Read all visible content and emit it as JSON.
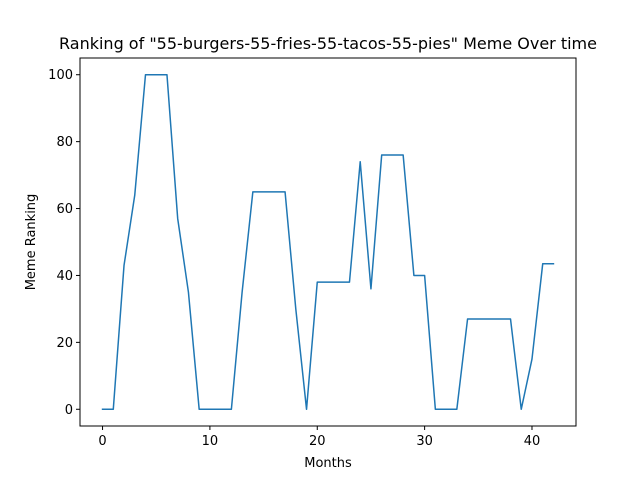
{
  "chart_data": {
    "type": "line",
    "title": "Ranking of \"55-burgers-55-fries-55-tacos-55-pies\" Meme Over time",
    "xlabel": "Months",
    "ylabel": "Meme Ranking",
    "xlim": [
      -2.1,
      44.1
    ],
    "ylim": [
      -5,
      105
    ],
    "xticks": [
      0,
      10,
      20,
      30,
      40
    ],
    "yticks": [
      0,
      20,
      40,
      60,
      80,
      100
    ],
    "grid": false,
    "series": [
      {
        "color": "#1f77b4",
        "x": [
          0,
          1,
          2,
          3,
          4,
          5,
          6,
          7,
          8,
          9,
          10,
          11,
          12,
          13,
          14,
          15,
          16,
          17,
          18,
          19,
          20,
          21,
          22,
          23,
          24,
          25,
          26,
          27,
          28,
          29,
          30,
          31,
          32,
          33,
          34,
          35,
          36,
          37,
          38,
          39,
          40,
          41,
          42
        ],
        "values": [
          0,
          0,
          43,
          64,
          100,
          100,
          100,
          57,
          35,
          0,
          0,
          0,
          0,
          35,
          65,
          65,
          65,
          65,
          30,
          0,
          38,
          38,
          38,
          38,
          74,
          36,
          76,
          76,
          76,
          40,
          40,
          0,
          0,
          0,
          27,
          27,
          27,
          27,
          27,
          0,
          15,
          43.5,
          43.5
        ]
      }
    ]
  }
}
